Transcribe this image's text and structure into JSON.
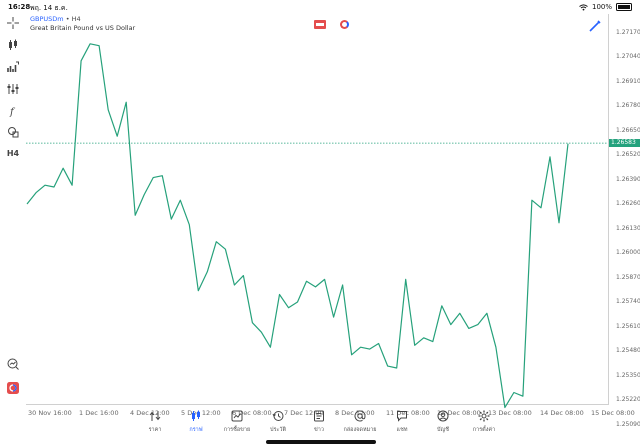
{
  "status": {
    "time": "16:28",
    "date": "พฤ. 14 ธ.ค.",
    "battery": "100%"
  },
  "chart": {
    "symbol": "GBPUSDm",
    "timeframe": "H4",
    "description": "Great Britain Pound vs US Dollar",
    "current_price": "1.26583"
  },
  "price_axis": [
    "1.27170",
    "1.27040",
    "1.26910",
    "1.26780",
    "1.26650",
    "1.26520",
    "1.26390",
    "1.26260",
    "1.26130",
    "1.26000",
    "1.25870",
    "1.25740",
    "1.25610",
    "1.25480",
    "1.25350",
    "1.25220",
    "1.25090"
  ],
  "time_axis": [
    "30 Nov 16:00",
    "1 Dec 16:00",
    "4 Dec 12:00",
    "5 Dec 12:00",
    "6 Dec 08:00",
    "7 Dec 12:00",
    "8 Dec 12:00",
    "11 Dec 08:00",
    "12 Dec 08:00",
    "13 Dec 08:00",
    "14 Dec 08:00",
    "15 Dec 08:00"
  ],
  "nav": [
    {
      "label": "ราคา",
      "icon": "quotes-icon"
    },
    {
      "label": "กราฟ",
      "icon": "chart-icon"
    },
    {
      "label": "การซื้อขาย",
      "icon": "trade-icon"
    },
    {
      "label": "ประวัติ",
      "icon": "history-icon"
    },
    {
      "label": "ข่าว",
      "icon": "news-icon"
    },
    {
      "label": "กล่องจดหมาย",
      "icon": "mailbox-icon"
    },
    {
      "label": "แชท",
      "icon": "chat-icon"
    },
    {
      "label": "บัญชี",
      "icon": "account-icon"
    },
    {
      "label": "การตั้งค่า",
      "icon": "settings-icon"
    }
  ],
  "active_nav": "กราฟ",
  "colors": {
    "line": "#26a17b",
    "accent": "#2962ff",
    "current": "#24a27d"
  },
  "chart_data": {
    "type": "line",
    "series": [
      {
        "values": [
          1.2626,
          1.2632,
          1.2636,
          1.2635,
          1.2645,
          1.2636,
          1.2702,
          1.2711,
          1.271,
          1.2676,
          1.2662,
          1.268,
          1.262,
          1.2631,
          1.264,
          1.2641,
          1.2618,
          1.2628,
          1.2615,
          1.258,
          1.259,
          1.2606,
          1.2602,
          1.2583,
          1.2588,
          1.2563,
          1.2558,
          1.255,
          1.2578,
          1.2571,
          1.2574,
          1.2585,
          1.2582,
          1.2586,
          1.2566,
          1.2583,
          1.2546,
          1.255,
          1.2549,
          1.2552,
          1.254,
          1.2539,
          1.2586,
          1.2551,
          1.2555,
          1.2553,
          1.2572,
          1.2562,
          1.2568,
          1.256,
          1.2562,
          1.2568,
          1.255,
          1.2518,
          1.2526,
          1.2524,
          1.2628,
          1.2624,
          1.2651,
          1.2616,
          1.2658
        ]
      }
    ],
    "ylim": [
      1.25,
      1.2725
    ],
    "current": 1.26583
  }
}
